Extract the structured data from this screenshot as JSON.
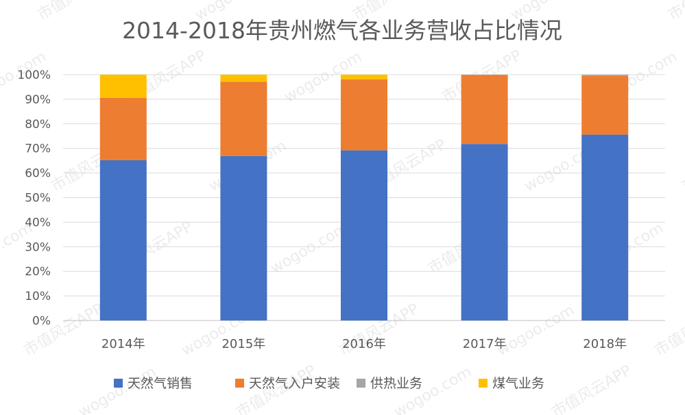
{
  "chart_data": {
    "type": "bar",
    "stacked": true,
    "percent": true,
    "title": "2014-2018年贵州燃气各业务营收占比情况",
    "categories": [
      "2014年",
      "2015年",
      "2016年",
      "2017年",
      "2018年"
    ],
    "ylim": [
      0,
      100
    ],
    "yticks": [
      "0%",
      "10%",
      "20%",
      "30%",
      "40%",
      "50%",
      "60%",
      "70%",
      "80%",
      "90%",
      "100%"
    ],
    "grid": true,
    "legend_position": "bottom",
    "series": [
      {
        "name": "天然气销售",
        "color": "#4472C4",
        "values": [
          65.2,
          66.9,
          69.2,
          71.8,
          75.6
        ]
      },
      {
        "name": "天然气入户安装",
        "color": "#ED7D31",
        "values": [
          25.4,
          30.2,
          28.9,
          28.1,
          23.9
        ]
      },
      {
        "name": "供热业务",
        "color": "#A5A5A5",
        "values": [
          0.0,
          0.0,
          0.0,
          0.1,
          0.5
        ]
      },
      {
        "name": "煤气业务",
        "color": "#FFC000",
        "values": [
          9.4,
          2.9,
          1.9,
          0.0,
          0.0
        ]
      }
    ]
  },
  "watermark": {
    "text": "市值风云APP",
    "site": "wogoo.com"
  }
}
